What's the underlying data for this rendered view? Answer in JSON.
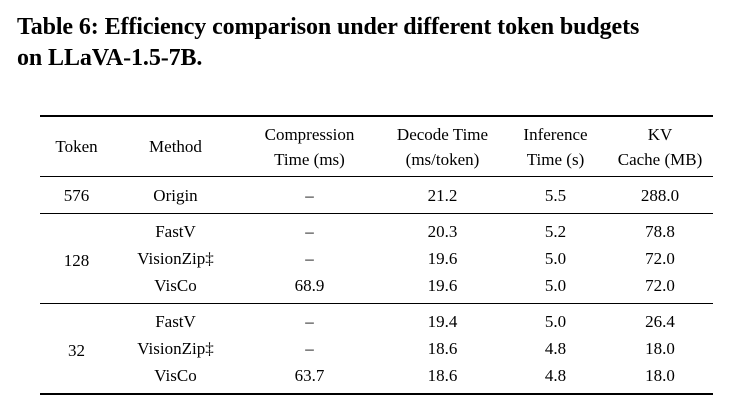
{
  "caption": {
    "line1": "Table 6: Efficiency comparison under different token budgets",
    "line2": "on LLaVA-1.5-7B."
  },
  "table": {
    "headers": [
      [
        "Token"
      ],
      [
        "Method"
      ],
      [
        "Compression",
        "Time (ms)"
      ],
      [
        "Decode Time",
        "(ms/token)"
      ],
      [
        "Inference",
        "Time (s)"
      ],
      [
        "KV",
        "Cache (MB)"
      ]
    ],
    "groups": [
      {
        "token": "576",
        "rows": [
          {
            "method": "Origin",
            "compression": "–",
            "decode": "21.2",
            "inference": "5.5",
            "kv": "288.0"
          }
        ]
      },
      {
        "token": "128",
        "rows": [
          {
            "method": "FastV",
            "compression": "–",
            "decode": "20.3",
            "inference": "5.2",
            "kv": "78.8"
          },
          {
            "method": "VisionZip‡",
            "compression": "–",
            "decode": "19.6",
            "inference": "5.0",
            "kv": "72.0"
          },
          {
            "method": "VisCo",
            "compression": "68.9",
            "decode": "19.6",
            "inference": "5.0",
            "kv": "72.0"
          }
        ]
      },
      {
        "token": "32",
        "rows": [
          {
            "method": "FastV",
            "compression": "–",
            "decode": "19.4",
            "inference": "5.0",
            "kv": "26.4"
          },
          {
            "method": "VisionZip‡",
            "compression": "–",
            "decode": "18.6",
            "inference": "4.8",
            "kv": "18.0"
          },
          {
            "method": "VisCo",
            "compression": "63.7",
            "decode": "18.6",
            "inference": "4.8",
            "kv": "18.0"
          }
        ]
      }
    ]
  }
}
